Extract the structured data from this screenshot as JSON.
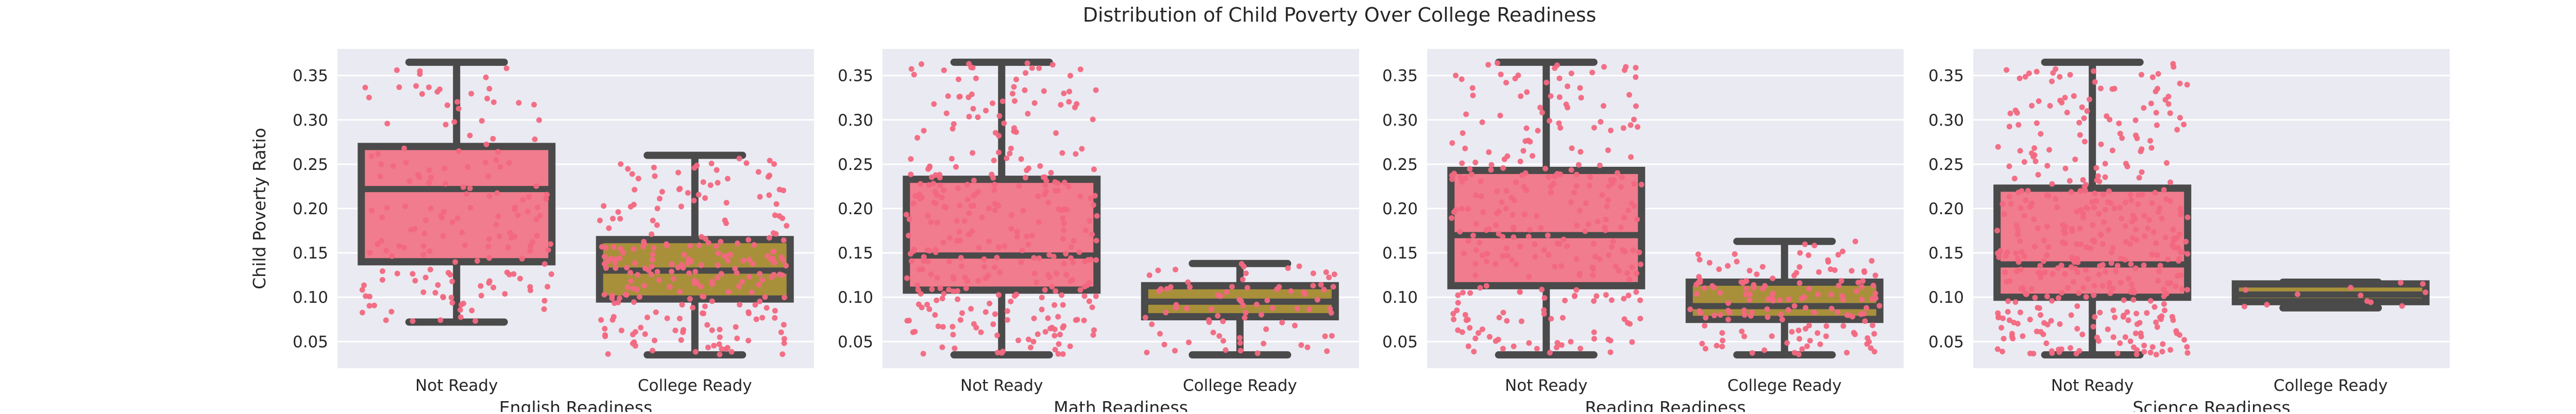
{
  "title": "Distribution of Child Poverty Over College Readiness",
  "colors": {
    "panel_bg": "#EAEAF2",
    "grid": "#FFFFFF",
    "box_not_ready": "#F07C8D",
    "box_college_ready": "#A8903A",
    "box_edge": "#4A4A4A",
    "points": "#F2687F"
  },
  "chart_data": [
    {
      "type": "box",
      "title": "",
      "xlabel": "English Readiness",
      "ylabel": "Child Poverty Ratio",
      "categories": [
        "Not Ready",
        "College Ready"
      ],
      "ylim": [
        0.02,
        0.38
      ],
      "yticks": [
        "0.05",
        "0.10",
        "0.15",
        "0.20",
        "0.25",
        "0.30",
        "0.35"
      ],
      "grid": true,
      "series": [
        {
          "category": "Not Ready",
          "whislo": 0.072,
          "q1": 0.14,
          "med": 0.222,
          "q3": 0.27,
          "whishi": 0.365,
          "n": 170
        },
        {
          "category": "College Ready",
          "whislo": 0.035,
          "q1": 0.098,
          "med": 0.13,
          "q3": 0.165,
          "whishi": 0.26,
          "n": 240
        }
      ]
    },
    {
      "type": "box",
      "title": "",
      "xlabel": "Math Readiness",
      "ylabel": "",
      "categories": [
        "Not Ready",
        "College Ready"
      ],
      "ylim": [
        0.02,
        0.38
      ],
      "yticks": [
        "0.05",
        "0.10",
        "0.15",
        "0.20",
        "0.25",
        "0.30",
        "0.35"
      ],
      "grid": true,
      "series": [
        {
          "category": "Not Ready",
          "whislo": 0.035,
          "q1": 0.108,
          "med": 0.147,
          "q3": 0.233,
          "whishi": 0.365,
          "n": 330
        },
        {
          "category": "College Ready",
          "whislo": 0.035,
          "q1": 0.078,
          "med": 0.095,
          "q3": 0.113,
          "whishi": 0.138,
          "n": 80
        }
      ]
    },
    {
      "type": "box",
      "title": "",
      "xlabel": "Reading Readiness",
      "ylabel": "",
      "categories": [
        "Not Ready",
        "College Ready"
      ],
      "ylim": [
        0.02,
        0.38
      ],
      "yticks": [
        "0.05",
        "0.10",
        "0.15",
        "0.20",
        "0.25",
        "0.30",
        "0.35"
      ],
      "grid": true,
      "series": [
        {
          "category": "Not Ready",
          "whislo": 0.035,
          "q1": 0.113,
          "med": 0.17,
          "q3": 0.243,
          "whishi": 0.365,
          "n": 280
        },
        {
          "category": "College Ready",
          "whislo": 0.035,
          "q1": 0.075,
          "med": 0.09,
          "q3": 0.117,
          "whishi": 0.163,
          "n": 150
        }
      ]
    },
    {
      "type": "box",
      "title": "",
      "xlabel": "Science Readiness",
      "ylabel": "",
      "categories": [
        "Not Ready",
        "College Ready"
      ],
      "ylim": [
        0.02,
        0.38
      ],
      "yticks": [
        "0.05",
        "0.10",
        "0.15",
        "0.20",
        "0.25",
        "0.30",
        "0.35"
      ],
      "grid": true,
      "series": [
        {
          "category": "Not Ready",
          "whislo": 0.035,
          "q1": 0.1,
          "med": 0.137,
          "q3": 0.223,
          "whishi": 0.365,
          "n": 420
        },
        {
          "category": "College Ready",
          "whislo": 0.088,
          "q1": 0.095,
          "med": 0.103,
          "q3": 0.115,
          "whishi": 0.117,
          "n": 12
        }
      ]
    }
  ]
}
